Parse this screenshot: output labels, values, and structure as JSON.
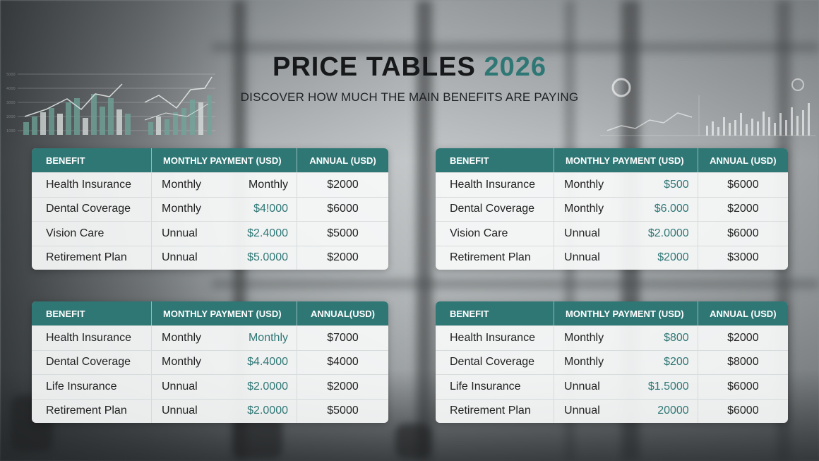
{
  "header": {
    "title": "PRICE TABLES",
    "year": "2026",
    "subtitle": "DISCOVER HOW MUCH THE MAIN BENEFITS ARE PAYING"
  },
  "colors": {
    "accent": "#2f7775",
    "text": "#161819"
  },
  "tables": [
    {
      "headers": [
        "BENEFIT",
        "MONTHLY PAYMENT (USD)",
        "ANNUAL (USD)"
      ],
      "rows": [
        {
          "benefit": "Health Insurance",
          "frequency": "Monthly",
          "monthly": "Monthly",
          "annual": "$2000"
        },
        {
          "benefit": "Dental Coverage",
          "frequency": "Monthly",
          "monthly": "$4!000",
          "annual": "$6000"
        },
        {
          "benefit": "Vision Care",
          "frequency": "Unnual",
          "monthly": "$2.4000",
          "annual": "$5000"
        },
        {
          "benefit": "Retirement Plan",
          "frequency": "Unnual",
          "monthly": "$5.0000",
          "annual": "$2000"
        }
      ]
    },
    {
      "headers": [
        "BENEFIT",
        "MONTHLY PAYMENT (USD)",
        "ANNUAL (USD)"
      ],
      "rows": [
        {
          "benefit": "Health Insurance",
          "frequency": "Monthly",
          "monthly": "$500",
          "annual": "$6000"
        },
        {
          "benefit": "Dental Coverage",
          "frequency": "Monthly",
          "monthly": "$6.000",
          "annual": "$2000"
        },
        {
          "benefit": "Vision Care",
          "frequency": "Unnual",
          "monthly": "$2.0000",
          "annual": "$6000"
        },
        {
          "benefit": "Retirement Plan",
          "frequency": "Unnual",
          "monthly": "$2000",
          "annual": "$3000"
        }
      ]
    },
    {
      "headers": [
        "BENEFIT",
        "MONTHLY PAYMENT (USD)",
        "ANNUAL(USD)"
      ],
      "rows": [
        {
          "benefit": "Health Insurance",
          "frequency": "Monthly",
          "monthly": "Monthly",
          "annual": "$7000"
        },
        {
          "benefit": "Dental Coverage",
          "frequency": "Monthly",
          "monthly": "$4.4000",
          "annual": "$4000"
        },
        {
          "benefit": "Life Insurance",
          "frequency": "Unnual",
          "monthly": "$2.0000",
          "annual": "$2000"
        },
        {
          "benefit": "Retirement Plan",
          "frequency": "Unnual",
          "monthly": "$2.0000",
          "annual": "$5000"
        }
      ]
    },
    {
      "headers": [
        "BENEFIT",
        "MONTHLY PAYMENT (USD)",
        "ANNUAL (USD)"
      ],
      "rows": [
        {
          "benefit": "Health Insurance",
          "frequency": "Monthly",
          "monthly": "$800",
          "annual": "$2000"
        },
        {
          "benefit": "Dental Coverage",
          "frequency": "Monthly",
          "monthly": "$200",
          "annual": "$8000"
        },
        {
          "benefit": "Life Insurance",
          "frequency": "Unnual",
          "monthly": "$1.5000",
          "annual": "$6000"
        },
        {
          "benefit": "Retirement Plan",
          "frequency": "Unnual",
          "monthly": "20000",
          "annual": "$6000"
        }
      ]
    }
  ]
}
